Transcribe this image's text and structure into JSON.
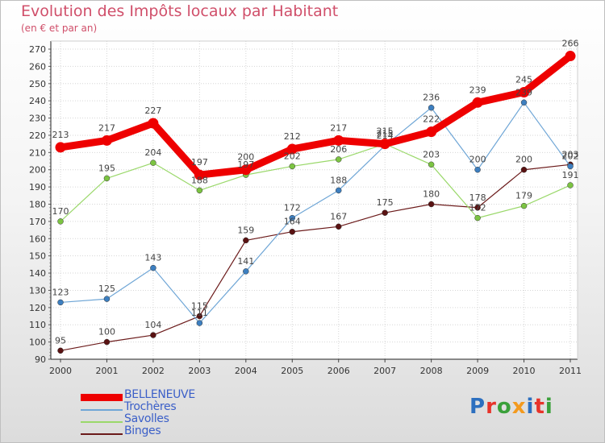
{
  "title": "Evolution des Impôts locaux par Habitant",
  "subtitle": "(en € et par an)",
  "brand": {
    "text": "Proxiti",
    "letter_colors": [
      "#2c6fbf",
      "#e8332a",
      "#3aa03a",
      "#f39a1e",
      "#2c6fbf",
      "#e8332a",
      "#3aa03a"
    ]
  },
  "chart_data": {
    "type": "line",
    "title": "Evolution des Impôts locaux par Habitant",
    "subtitle": "(en € et par an)",
    "xlabel": "",
    "ylabel": "",
    "ylim": [
      90,
      270
    ],
    "yticks": [
      90,
      100,
      110,
      120,
      130,
      140,
      150,
      160,
      170,
      180,
      190,
      200,
      210,
      220,
      230,
      240,
      250,
      260,
      270
    ],
    "grid": true,
    "legend_position": "bottom-left",
    "x": [
      "2000",
      "2001",
      "2002",
      "2003",
      "2004",
      "2005",
      "2006",
      "2007",
      "2008",
      "2009",
      "2010",
      "2011"
    ],
    "series": [
      {
        "name": "Binges",
        "color": "#6b1a1a",
        "dot": "#5a1212",
        "width": 1.2,
        "dotRadius": 3.5,
        "values": [
          95,
          100,
          104,
          115,
          159,
          164,
          167,
          175,
          180,
          178,
          200,
          203
        ],
        "labels": [
          "95",
          "100",
          "104",
          "115",
          "159",
          "164",
          "167",
          "175",
          "180",
          "178",
          "200",
          "203"
        ]
      },
      {
        "name": "Savolles",
        "color": "#9ad86a",
        "dot": "#7cc442",
        "width": 1.2,
        "dotRadius": 3.5,
        "values": [
          170,
          195,
          204,
          188,
          197,
          202,
          206,
          215,
          203,
          172,
          179,
          191
        ],
        "labels": [
          "170",
          "195",
          "204",
          "188",
          "197",
          "202",
          "206",
          "215",
          "203",
          "172",
          "179",
          "191"
        ]
      },
      {
        "name": "Trochères",
        "color": "#6fa6d6",
        "dot": "#3d7fc0",
        "width": 1.2,
        "dotRadius": 3.5,
        "values": [
          123,
          125,
          143,
          111,
          141,
          172,
          188,
          214,
          236,
          200,
          239,
          202
        ],
        "labels": [
          "123",
          "125",
          "143",
          "111",
          "141",
          "172",
          "188",
          "214",
          "236",
          "200",
          "239",
          "202"
        ]
      },
      {
        "name": "BELLENEUVE",
        "color": "#ee0000",
        "dot": "#ee0000",
        "width": 9,
        "dotRadius": 6.5,
        "values": [
          213,
          217,
          227,
          197,
          200,
          212,
          217,
          215,
          222,
          239,
          245,
          266
        ],
        "labels": [
          "213",
          "217",
          "227",
          "197",
          "200",
          "212",
          "217",
          "215",
          "222",
          "239",
          "245",
          "266"
        ]
      }
    ],
    "legend": [
      {
        "name": "BELLENEUVE",
        "color": "#ee0000"
      },
      {
        "name": "Trochères",
        "color": "#6fa6d6"
      },
      {
        "name": "Savolles",
        "color": "#9ad86a"
      },
      {
        "name": "Binges",
        "color": "#6b1a1a"
      }
    ]
  }
}
